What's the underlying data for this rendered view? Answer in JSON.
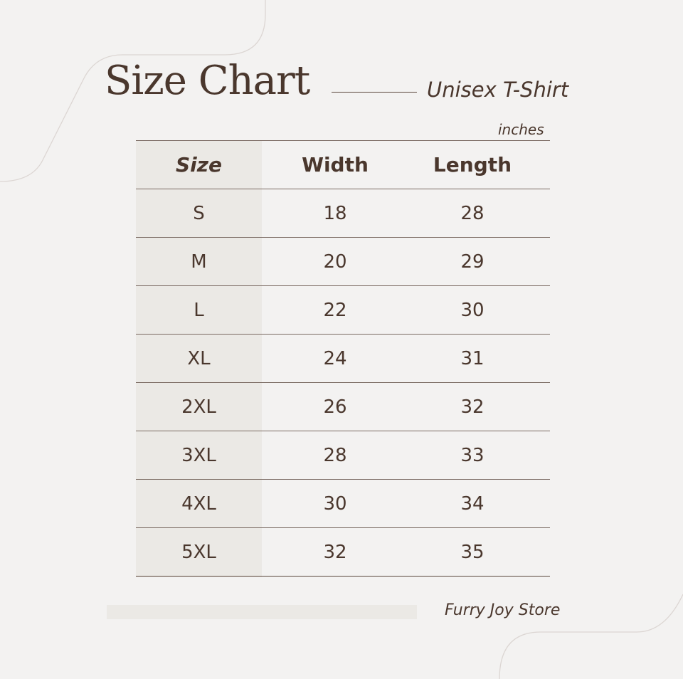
{
  "header": {
    "title": "Size Chart",
    "subtitle": "Unisex T-Shirt",
    "unit": "inches"
  },
  "table": {
    "columns": [
      "Size",
      "Width",
      "Length"
    ],
    "rows": [
      [
        "S",
        "18",
        "28"
      ],
      [
        "M",
        "20",
        "29"
      ],
      [
        "L",
        "22",
        "30"
      ],
      [
        "XL",
        "24",
        "31"
      ],
      [
        "2XL",
        "26",
        "32"
      ],
      [
        "3XL",
        "28",
        "33"
      ],
      [
        "4XL",
        "30",
        "34"
      ],
      [
        "5XL",
        "32",
        "35"
      ]
    ]
  },
  "footer": {
    "store": "Furry Joy Store"
  },
  "colors": {
    "background": "#f3f2f1",
    "text": "#4a372d",
    "shade": "#ebe9e5"
  }
}
